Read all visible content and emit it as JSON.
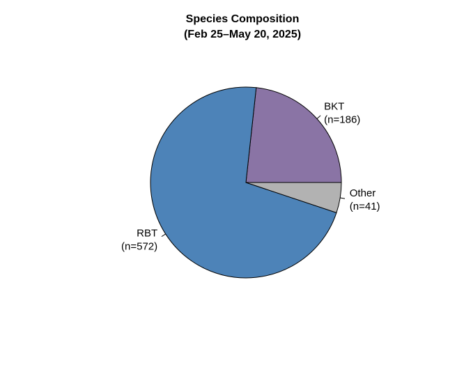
{
  "chart_data": {
    "type": "pie",
    "title": "Species Composition",
    "subtitle": "(Feb 25–May 20, 2025)",
    "start_angle_deg": 0,
    "direction": "counterclockwise",
    "stroke_color": "#000000",
    "background": "#FFFFFF",
    "text_color": "#000000",
    "slices": [
      {
        "name": "BKT",
        "n": 186,
        "color": "#8A74A5",
        "label_lines": [
          "BKT",
          "(n=186)"
        ]
      },
      {
        "name": "RBT",
        "n": 572,
        "color": "#4D83B8",
        "label_lines": [
          "RBT",
          "(n=572)"
        ]
      },
      {
        "name": "Other",
        "n": 41,
        "color": "#B2B2B2",
        "label_lines": [
          "Other",
          "(n=41)"
        ]
      }
    ]
  }
}
